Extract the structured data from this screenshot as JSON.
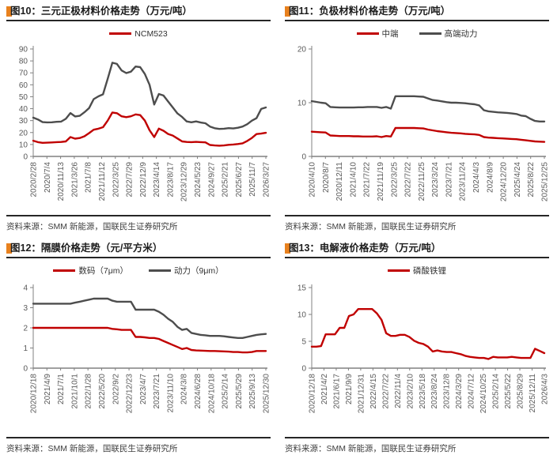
{
  "source": "资料来源：SMM 新能源，国联民生证券研究所",
  "colors": {
    "red": "#c00000",
    "gray": "#4d4d4d",
    "axis": "#808080",
    "bullet": "#e8811e"
  },
  "chart_data": [
    {
      "type": "line",
      "title": "图10：三元正极材料价格走势（万元/吨）",
      "ylabel": "万元/吨",
      "ylim": [
        0,
        90
      ],
      "yticks": [
        0,
        10,
        20,
        30,
        40,
        50,
        60,
        70,
        80,
        90
      ],
      "grid": false,
      "legend_position": "top-center",
      "x_tick_labels": [
        "2020/2/28",
        "2020/7/4",
        "2020/11/13",
        "2021/3/26",
        "2021/7/8",
        "2021/11/12",
        "2022/3/25",
        "2022/7/29",
        "2022/12/9",
        "2023/4/14",
        "2023/8/17",
        "2023/12/29",
        "2024/5/23",
        "2024/9/27",
        "2025/2/21",
        "2025/6/27",
        "2025/11/7",
        "2026/3/27"
      ],
      "legend": [
        {
          "label": "NCM523",
          "color": "#c00000"
        }
      ],
      "series": [
        {
          "name": "",
          "color": "#4d4d4d",
          "values": [
            32.5,
            31,
            28.7,
            28.5,
            28.6,
            29,
            29.2,
            31.5,
            36.3,
            33.5,
            34,
            37,
            40.5,
            48,
            50.3,
            52,
            65,
            78.5,
            77.5,
            72,
            69.8,
            71,
            75.3,
            74.8,
            69,
            60,
            43.5,
            52.3,
            51,
            46,
            41,
            36,
            33,
            29.3,
            28.6,
            29.3,
            28.4,
            27.8,
            25,
            23.6,
            23,
            23.2,
            23.7,
            23.4,
            24,
            25,
            27,
            30,
            32,
            39.8,
            41
          ]
        },
        {
          "name": "NCM523",
          "color": "#c00000",
          "values": [
            13.2,
            12,
            11.4,
            11.5,
            11.7,
            12,
            12.1,
            12.6,
            16.2,
            14.9,
            15.4,
            16.9,
            19.5,
            22.4,
            23.2,
            24.5,
            30,
            36.8,
            36.2,
            33.6,
            32.9,
            33.6,
            35.2,
            34.6,
            30,
            22,
            16.2,
            23.3,
            21.5,
            18.8,
            17.5,
            15,
            12.6,
            12.1,
            12,
            12.2,
            12,
            11.8,
            9.6,
            9.2,
            9,
            9.2,
            9.7,
            10,
            10.4,
            11,
            13,
            15.5,
            18.7,
            19.1,
            19.8
          ]
        }
      ]
    },
    {
      "type": "line",
      "title": "图11：负极材料价格走势（万元/吨）",
      "ylabel": "万元/吨",
      "ylim": [
        0,
        20
      ],
      "yticks": [
        0,
        10,
        20
      ],
      "grid": false,
      "legend_position": "top-center",
      "x_tick_labels": [
        "2020/4/10",
        "2020/8/7",
        "2020/12/11",
        "2021/4/10",
        "2021/7/22",
        "2021/11/19",
        "2022/3/25",
        "2022/7/22",
        "2022/11/25",
        "2023/3/24",
        "2023/7/21",
        "2023/11/24",
        "2024/4/3",
        "2024/8/9",
        "2024/12/20",
        "2025/4/24",
        "2025/8/22",
        "2025/12/25"
      ],
      "legend": [
        {
          "label": "中端",
          "color": "#c00000"
        },
        {
          "label": "高端动力",
          "color": "#4d4d4d"
        }
      ],
      "series": [
        {
          "name": "高端动力",
          "color": "#4d4d4d",
          "values": [
            10.3,
            10.15,
            10,
            9.9,
            9.2,
            9.15,
            9.1,
            9.1,
            9.1,
            9.1,
            9.15,
            9.15,
            9.2,
            9.2,
            9.2,
            9.05,
            9.2,
            8.9,
            11.2,
            11.2,
            11.2,
            11.2,
            11.2,
            11.15,
            11.1,
            10.8,
            10.5,
            10.4,
            10.25,
            10.1,
            10,
            10,
            9.95,
            9.9,
            9.8,
            9.7,
            9.5,
            8.6,
            8.4,
            8.3,
            8.2,
            8.15,
            8.1,
            8,
            7.9,
            7.6,
            7.5,
            7,
            6.6,
            6.5,
            6.5
          ]
        },
        {
          "name": "中端",
          "color": "#c00000",
          "values": [
            4.6,
            4.55,
            4.5,
            4.45,
            3.9,
            3.85,
            3.8,
            3.8,
            3.8,
            3.75,
            3.75,
            3.7,
            3.7,
            3.7,
            3.75,
            3.6,
            3.8,
            3.7,
            5.3,
            5.3,
            5.3,
            5.3,
            5.3,
            5.25,
            5.2,
            5,
            4.85,
            4.7,
            4.6,
            4.5,
            4.4,
            4.35,
            4.3,
            4.2,
            4.15,
            4.1,
            4,
            3.6,
            3.5,
            3.45,
            3.4,
            3.35,
            3.3,
            3.25,
            3.2,
            3.1,
            3,
            2.9,
            2.8,
            2.75,
            2.7
          ]
        }
      ]
    },
    {
      "type": "line",
      "title": "图12：隔膜价格走势（元/平方米）",
      "ylabel": "元/平方米",
      "ylim": [
        0,
        4
      ],
      "yticks": [
        0,
        1,
        2,
        3,
        4
      ],
      "grid": false,
      "legend_position": "top-center",
      "x_tick_labels": [
        "2020/12/18",
        "2021/4/9",
        "2021/7/1",
        "2021/10/1",
        "2022/1/28",
        "2022/5/20",
        "2022/9/2",
        "2022/12/23",
        "2023/4/7",
        "2023/7/21",
        "2023/11/10",
        "2024/3/8",
        "2024/6/28",
        "2024/10/18",
        "2025/2/14",
        "2025/5/29",
        "2025/9/13",
        "2025/12/30"
      ],
      "legend": [
        {
          "label": "数码（7μm）",
          "color": "#c00000"
        },
        {
          "label": "动力（9μm）",
          "color": "#4d4d4d"
        }
      ],
      "series": [
        {
          "name": "动力（9μm）",
          "color": "#4d4d4d",
          "values": [
            3.2,
            3.2,
            3.2,
            3.2,
            3.2,
            3.2,
            3.2,
            3.2,
            3.2,
            3.25,
            3.3,
            3.35,
            3.4,
            3.45,
            3.45,
            3.45,
            3.45,
            3.35,
            3.3,
            3.3,
            3.3,
            3.3,
            2.9,
            2.9,
            2.9,
            2.9,
            2.9,
            2.8,
            2.65,
            2.45,
            2.3,
            2.05,
            1.9,
            1.95,
            1.75,
            1.7,
            1.65,
            1.63,
            1.6,
            1.6,
            1.6,
            1.58,
            1.55,
            1.52,
            1.5,
            1.5,
            1.55,
            1.6,
            1.65,
            1.68,
            1.7
          ]
        },
        {
          "name": "数码（7μm）",
          "color": "#c00000",
          "values": [
            2,
            2,
            2,
            2,
            2,
            2,
            2,
            2,
            2,
            2,
            2,
            2,
            2,
            2,
            2,
            2,
            2,
            1.95,
            1.93,
            1.9,
            1.9,
            1.9,
            1.55,
            1.55,
            1.53,
            1.5,
            1.5,
            1.45,
            1.35,
            1.25,
            1.15,
            1.05,
            0.95,
            1,
            0.9,
            0.88,
            0.87,
            0.86,
            0.85,
            0.85,
            0.84,
            0.83,
            0.82,
            0.8,
            0.8,
            0.78,
            0.78,
            0.8,
            0.85,
            0.85,
            0.85
          ]
        }
      ]
    },
    {
      "type": "line",
      "title": "图13：电解液价格走势（万元/吨）",
      "ylabel": "万元/吨",
      "ylim": [
        0,
        15
      ],
      "yticks": [
        0,
        5,
        10,
        15
      ],
      "grid": false,
      "legend_position": "top-center",
      "x_tick_labels": [
        "2020/12/18",
        "2021/4/2",
        "2021/6/17",
        "2021/9/9",
        "2021/12/31",
        "2022/4/15",
        "2022/7/22",
        "2022/11/4",
        "2023/2/10",
        "2023/5/18",
        "2023/8/24",
        "2023/12/8",
        "2024/3/29",
        "2024/7/12",
        "2024/10/25",
        "2025/2/14",
        "2025/5/22",
        "2025/8/29",
        "2025/12/11",
        "2026/4/3"
      ],
      "legend": [
        {
          "label": "磷酸铁锂",
          "color": "#c00000"
        }
      ],
      "series": [
        {
          "name": "磷酸铁锂",
          "color": "#c00000",
          "values": [
            4,
            4,
            4.1,
            6.3,
            6.3,
            6.3,
            7.5,
            7.5,
            9.7,
            10,
            11,
            11,
            11,
            11,
            10.2,
            9,
            6.5,
            6,
            6,
            6.2,
            6.2,
            5.8,
            5.1,
            4.7,
            4.5,
            4,
            3.1,
            3.3,
            3.1,
            3,
            3,
            2.8,
            2.6,
            2.3,
            2.1,
            2,
            1.9,
            1.9,
            1.7,
            2.1,
            2,
            2,
            2,
            2.1,
            2,
            1.9,
            1.9,
            1.9,
            3.6,
            3.2,
            2.8
          ]
        }
      ]
    }
  ]
}
